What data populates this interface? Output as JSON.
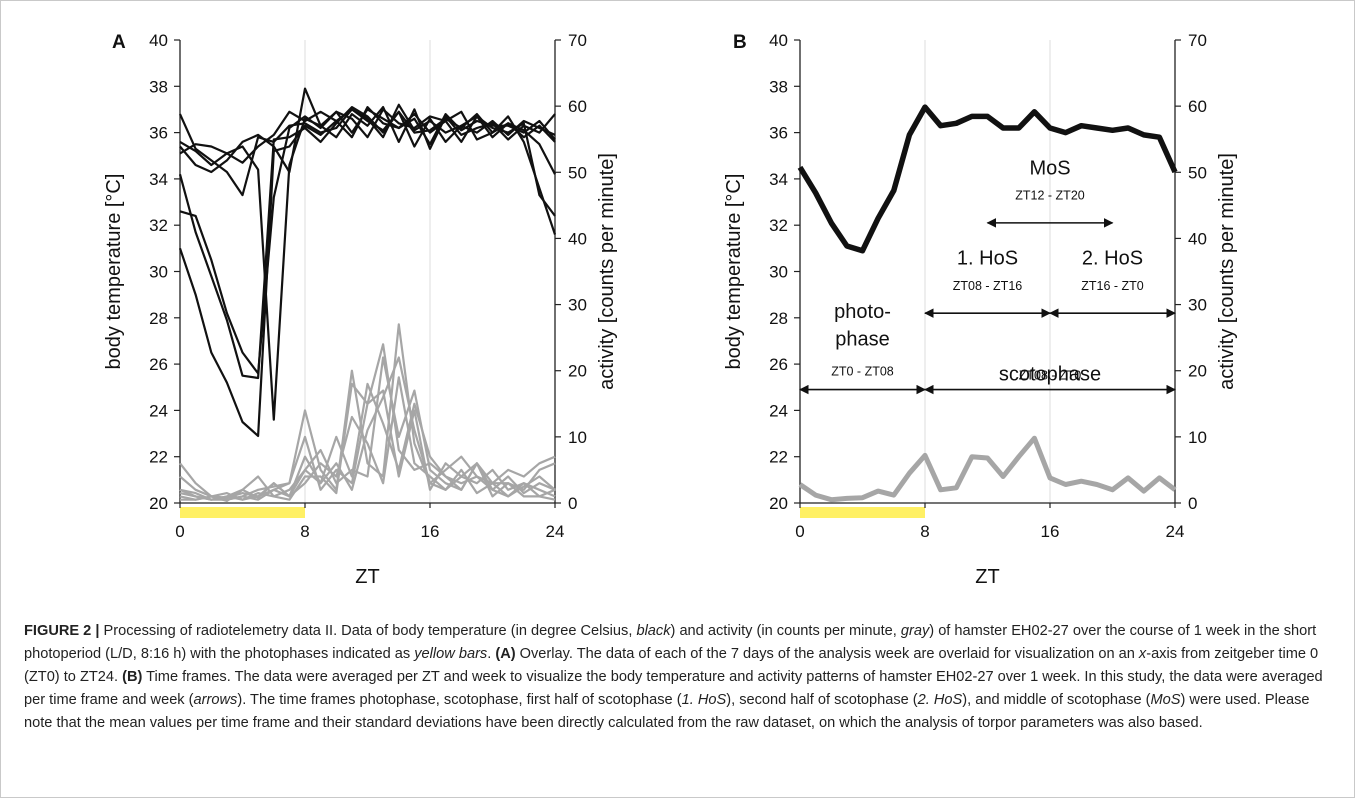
{
  "colors": {
    "temperature": "#111111",
    "activity": "#a6a6a6",
    "photophase_bar": "#fff064",
    "grid": "#dcdcdc",
    "axis": "#222222"
  },
  "chart_data": [
    {
      "type": "line",
      "panel_label": "A",
      "xlabel": "ZT",
      "ylabel": "body temperature [°C]",
      "y2label": "activity [counts per minute]",
      "xlim": [
        0,
        24
      ],
      "ylim": [
        20,
        40
      ],
      "y2lim": [
        0,
        70
      ],
      "xticks": [
        0,
        8,
        16,
        24
      ],
      "yticks": [
        20,
        22,
        24,
        26,
        28,
        30,
        32,
        34,
        36,
        38,
        40
      ],
      "y2ticks": [
        0,
        10,
        20,
        30,
        40,
        50,
        60,
        70
      ],
      "grid": "vertical at x ticks",
      "photophase_bar": [
        0,
        8
      ],
      "x": [
        0,
        1,
        2,
        3,
        4,
        5,
        6,
        7,
        8,
        9,
        10,
        11,
        12,
        13,
        14,
        15,
        16,
        17,
        18,
        19,
        20,
        21,
        22,
        23,
        24
      ],
      "temperature_series": [
        {
          "values": [
            36.8,
            35.3,
            34.8,
            34.3,
            33.3,
            35.8,
            35.6,
            36.3,
            36.4,
            36.0,
            36.2,
            37.0,
            36.6,
            35.8,
            37.2,
            36.1,
            36.5,
            36.0,
            36.3,
            36.7,
            35.8,
            36.4,
            36.1,
            35.5,
            34.2
          ]
        },
        {
          "values": [
            35.4,
            34.6,
            34.3,
            34.8,
            35.6,
            35.9,
            35.4,
            34.3,
            37.9,
            36.3,
            35.8,
            36.8,
            36.3,
            37.1,
            35.6,
            37.0,
            35.3,
            36.7,
            35.9,
            36.2,
            36.4,
            35.7,
            36.3,
            36.0,
            36.8
          ]
        },
        {
          "values": [
            35.1,
            35.5,
            35.4,
            35.1,
            34.7,
            35.4,
            35.9,
            36.9,
            36.5,
            36.9,
            36.5,
            35.8,
            37.1,
            36.4,
            36.2,
            36.8,
            36.0,
            36.5,
            36.9,
            35.7,
            36.0,
            36.4,
            35.8,
            36.3,
            35.6
          ]
        },
        {
          "values": [
            34.2,
            31.7,
            29.8,
            27.9,
            25.5,
            25.4,
            35.7,
            35.8,
            36.2,
            35.6,
            36.4,
            37.1,
            36.7,
            36.0,
            36.9,
            35.4,
            36.6,
            35.6,
            36.3,
            36.0,
            36.5,
            35.9,
            36.5,
            36.2,
            35.9
          ]
        },
        {
          "values": [
            32.6,
            32.4,
            30.5,
            28.2,
            26.5,
            25.6,
            33.2,
            36.2,
            36.7,
            36.2,
            36.9,
            36.6,
            35.8,
            37.0,
            36.4,
            36.2,
            36.7,
            36.5,
            35.6,
            36.7,
            36.2,
            36.0,
            36.4,
            33.3,
            32.4
          ]
        },
        {
          "values": [
            31.0,
            29.0,
            26.5,
            25.2,
            23.5,
            22.9,
            35.2,
            35.4,
            36.3,
            35.9,
            36.5,
            37.0,
            36.5,
            36.1,
            36.9,
            36.0,
            36.1,
            36.6,
            36.2,
            36.8,
            36.0,
            36.7,
            35.6,
            33.6,
            31.6
          ]
        },
        {
          "values": [
            35.6,
            35.2,
            34.6,
            35.1,
            35.4,
            34.4,
            23.6,
            34.6,
            36.6,
            36.3,
            36.9,
            36.0,
            37.0,
            36.6,
            36.2,
            36.6,
            35.5,
            36.8,
            36.1,
            36.5,
            36.3,
            36.3,
            36.0,
            36.5,
            35.7
          ]
        }
      ],
      "activity_series": [
        {
          "values": [
            6,
            3,
            1,
            0.5,
            1,
            2,
            2.5,
            3,
            14,
            5,
            2,
            20,
            6,
            4,
            27,
            9,
            3,
            5,
            7,
            4,
            3,
            5,
            4,
            6,
            7
          ]
        },
        {
          "values": [
            2,
            1.5,
            0.5,
            1,
            2,
            4,
            1,
            2,
            5,
            8,
            3,
            5,
            4,
            22,
            10,
            17,
            5,
            3,
            2,
            6,
            2,
            4,
            1.5,
            3,
            2
          ]
        },
        {
          "values": [
            1,
            0.5,
            1,
            0.8,
            1.5,
            1,
            3,
            1,
            7,
            3,
            10,
            4,
            18,
            12,
            5,
            15,
            7,
            4,
            3,
            4,
            2,
            1,
            3,
            2,
            1
          ]
        },
        {
          "values": [
            1.5,
            1,
            0.5,
            0.5,
            1,
            0.5,
            2,
            1,
            3,
            6,
            4,
            13,
            9,
            3,
            19,
            6,
            4,
            2,
            5,
            1.5,
            3,
            1,
            2.5,
            4,
            2
          ]
        },
        {
          "values": [
            4,
            2,
            1,
            1.5,
            0.5,
            1,
            2,
            3,
            10,
            2,
            5,
            3,
            15,
            17,
            4,
            14,
            2,
            6,
            4,
            3,
            5,
            2,
            3,
            1,
            2
          ]
        },
        {
          "values": [
            0.5,
            0.5,
            1,
            0.3,
            2,
            0.8,
            3,
            1,
            5,
            3,
            6,
            2,
            11,
            16,
            22,
            11,
            3,
            2,
            4,
            6,
            1,
            3,
            1,
            1,
            0.5
          ]
        },
        {
          "values": [
            2,
            1,
            0.5,
            1,
            0.5,
            1.5,
            1,
            0.5,
            4,
            4,
            1.5,
            18,
            15,
            24,
            8,
            5,
            6,
            4,
            2,
            6,
            3,
            3,
            2,
            5,
            6
          ]
        }
      ]
    },
    {
      "type": "line",
      "panel_label": "B",
      "xlabel": "ZT",
      "ylabel": "body temperature [°C]",
      "y2label": "activity [counts per minute]",
      "xlim": [
        0,
        24
      ],
      "ylim": [
        20,
        40
      ],
      "y2lim": [
        0,
        70
      ],
      "xticks": [
        0,
        8,
        16,
        24
      ],
      "yticks": [
        20,
        22,
        24,
        26,
        28,
        30,
        32,
        34,
        36,
        38,
        40
      ],
      "y2ticks": [
        0,
        10,
        20,
        30,
        40,
        50,
        60,
        70
      ],
      "grid": "vertical at x ticks",
      "photophase_bar": [
        0,
        8
      ],
      "x": [
        0,
        1,
        2,
        3,
        4,
        5,
        6,
        7,
        8,
        9,
        10,
        11,
        12,
        13,
        14,
        15,
        16,
        17,
        18,
        19,
        20,
        21,
        22,
        23,
        24
      ],
      "temperature_mean": [
        34.5,
        33.4,
        32.1,
        31.1,
        30.9,
        32.3,
        33.5,
        35.9,
        37.1,
        36.3,
        36.4,
        36.7,
        36.7,
        36.2,
        36.2,
        36.9,
        36.2,
        36.0,
        36.3,
        36.2,
        36.1,
        36.2,
        35.9,
        35.8,
        34.3
      ],
      "activity_mean": [
        2.8,
        1.2,
        0.5,
        0.7,
        0.8,
        1.8,
        1.2,
        4.5,
        7.2,
        2,
        2.3,
        7,
        6.8,
        4,
        7,
        9.8,
        3.8,
        2.8,
        3.3,
        2.8,
        2,
        3.8,
        1.8,
        3.8,
        2
      ],
      "annotations": [
        {
          "title": "photo-",
          "title2": "phase",
          "range_label": "ZT0 - ZT08",
          "start": 0,
          "end": 8
        },
        {
          "title": "scotophase",
          "range_label": "ZT08 - ZT0",
          "start": 8,
          "end": 24
        },
        {
          "title": "1. HoS",
          "range_label": "ZT08 - ZT16",
          "start": 8,
          "end": 16
        },
        {
          "title": "2. HoS",
          "range_label": "ZT16 - ZT0",
          "start": 16,
          "end": 24
        },
        {
          "title": "MoS",
          "range_label": "ZT12 - ZT20",
          "start": 12,
          "end": 20
        }
      ]
    }
  ],
  "caption": {
    "figure_label": "FIGURE 2 |",
    "t1": " Processing of radiotelemetry data II. Data of body temperature (in degree Celsius, ",
    "black": "black",
    "t2": ") and activity (in counts per minute, ",
    "gray": "gray",
    "t3": ") of hamster EH02-27 over the course of 1 week in the short photoperiod (L/D, 8:16 h) with the photophases indicated as ",
    "yellow_bars": "yellow bars",
    "t4": ". ",
    "a_label": "(A)",
    "t5": " Overlay. The data of each of the 7 days of the analysis week are overlaid for visualization on an ",
    "x_italic": "x",
    "t6": "-axis from zeitgeber time 0 (ZT0) to ZT24. ",
    "b_label": "(B)",
    "t7": " Time frames. The data were averaged per ZT and week to visualize the body temperature and activity patterns of hamster EH02-27 over 1 week. In this study, the data were averaged per time frame and week (",
    "arrows": "arrows",
    "t8": "). The time frames photophase, scotophase, first half of scotophase (",
    "hos1": "1. HoS",
    "t9": "), second half of scotophase (",
    "hos2": "2. HoS",
    "t10": "), and middle of scotophase (",
    "mos": "MoS",
    "t11": ") were used. Please note that the mean values per time frame and their standard deviations have been directly calculated from the raw dataset, on which the analysis of torpor parameters was also based."
  }
}
